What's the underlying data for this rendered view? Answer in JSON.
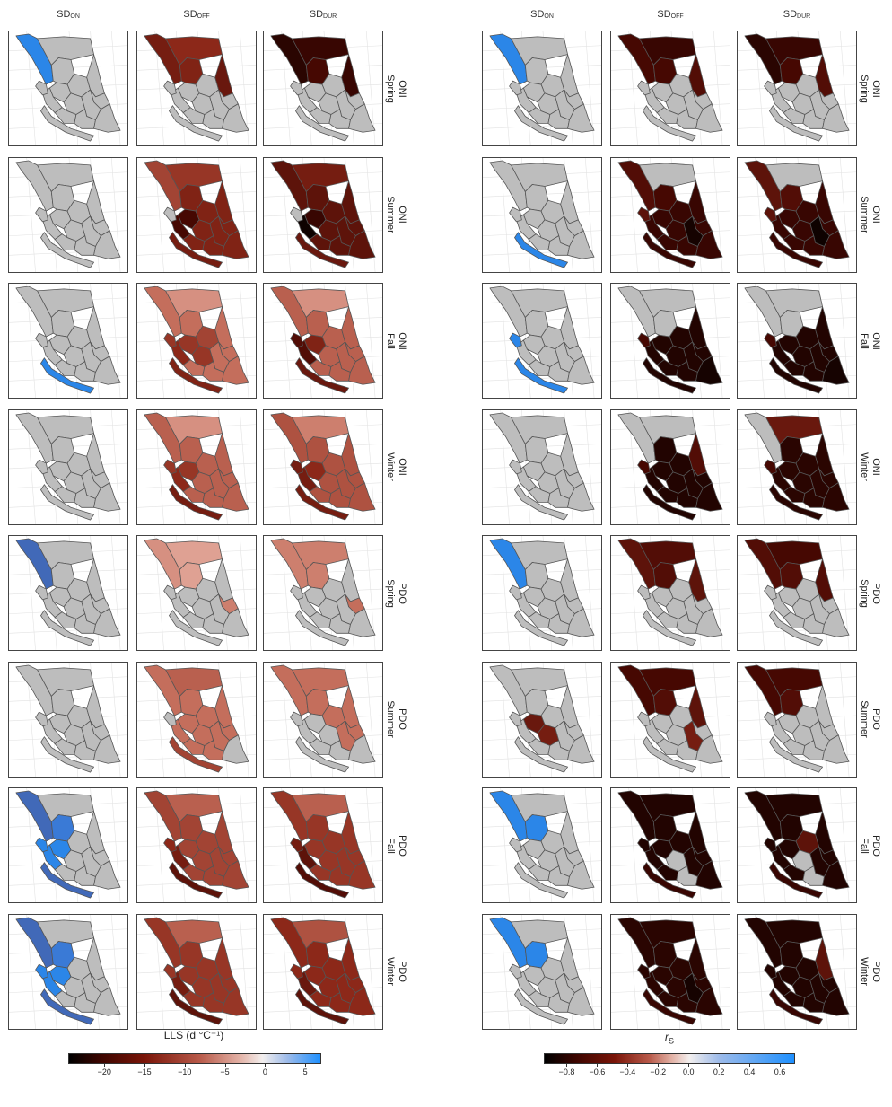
{
  "left_block": {
    "column_headers": [
      {
        "base": "SD",
        "sub": "ON"
      },
      {
        "base": "SD",
        "sub": "OFF"
      },
      {
        "base": "SD",
        "sub": "DUR"
      }
    ],
    "colorbar": {
      "title": "LLS (d °C⁻¹)",
      "ticks": [
        "−20",
        "−15",
        "−10",
        "−5",
        "0",
        "5"
      ],
      "tick_values": [
        -20,
        -15,
        -10,
        -5,
        0,
        5
      ],
      "range": [
        -24.5,
        7
      ]
    }
  },
  "right_block": {
    "column_headers": [
      {
        "base": "SD",
        "sub": "ON"
      },
      {
        "base": "SD",
        "sub": "OFF"
      },
      {
        "base": "SD",
        "sub": "DUR"
      }
    ],
    "colorbar": {
      "title_base": "r",
      "title_sub": "S",
      "ticks": [
        "−0.8",
        "−0.6",
        "−0.4",
        "−0.2",
        "0.0",
        "0.2",
        "0.4",
        "0.6"
      ],
      "tick_values": [
        -0.8,
        -0.6,
        -0.4,
        -0.2,
        0.0,
        0.2,
        0.4,
        0.6
      ],
      "range": [
        -0.95,
        0.7
      ]
    }
  },
  "rows": [
    {
      "index": "ONI",
      "season": "Spring"
    },
    {
      "index": "ONI",
      "season": "Summer"
    },
    {
      "index": "ONI",
      "season": "Fall"
    },
    {
      "index": "ONI",
      "season": "Winter"
    },
    {
      "index": "PDO",
      "season": "Spring"
    },
    {
      "index": "PDO",
      "season": "Summer"
    },
    {
      "index": "PDO",
      "season": "Fall"
    },
    {
      "index": "PDO",
      "season": "Winter"
    }
  ],
  "colors": {
    "not_significant": "#bdbdbd",
    "outline": "#555555",
    "graticule": "#e2e2e2",
    "blue_max": "#1e90ff",
    "red_mid": "#8b1a0e",
    "black": "#000000"
  }
}
